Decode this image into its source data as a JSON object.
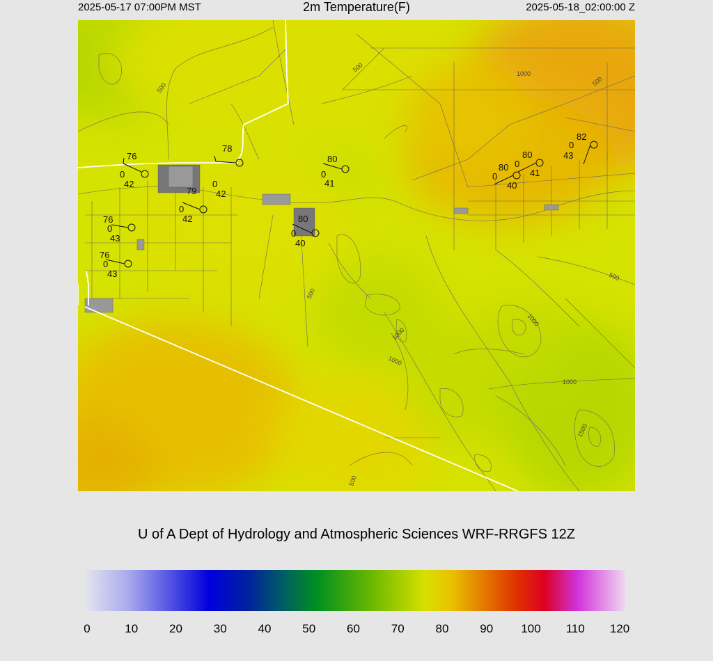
{
  "header": {
    "local_time": "2025-05-17 07:00PM MST",
    "title": "2m Temperature(F)",
    "utc_time": "2025-05-18_02:00:00 Z"
  },
  "credit": "U of A Dept of Hydrology and Atmospheric Sciences WRF-RRGFS 12Z",
  "colorbar": {
    "ticks": [
      "0",
      "10",
      "20",
      "30",
      "40",
      "50",
      "60",
      "70",
      "80",
      "90",
      "100",
      "110",
      "120"
    ],
    "min": 0,
    "max": 120
  },
  "contour_labels": [
    "500",
    "1000",
    "500",
    "500",
    "500",
    "1000",
    "1000",
    "1000",
    "500",
    "1500",
    "500"
  ],
  "stations": [
    {
      "temp": "76",
      "wind": "0",
      "dewpoint": "42"
    },
    {
      "temp": "78",
      "wind": "0",
      "dewpoint": "42"
    },
    {
      "temp": "79",
      "wind": "0",
      "dewpoint": "42"
    },
    {
      "temp": "80",
      "wind": "0",
      "dewpoint": "41"
    },
    {
      "temp": "76",
      "wind": "0",
      "dewpoint": "43"
    },
    {
      "temp": "76",
      "wind": "0",
      "dewpoint": "43"
    },
    {
      "temp": "80",
      "wind": "0",
      "dewpoint": "40"
    },
    {
      "temp": "80",
      "wind": "0",
      "dewpoint": "40"
    },
    {
      "temp": "80",
      "wind": "0",
      "dewpoint": "41"
    },
    {
      "temp": "82",
      "wind": "0",
      "dewpoint": "43"
    }
  ]
}
